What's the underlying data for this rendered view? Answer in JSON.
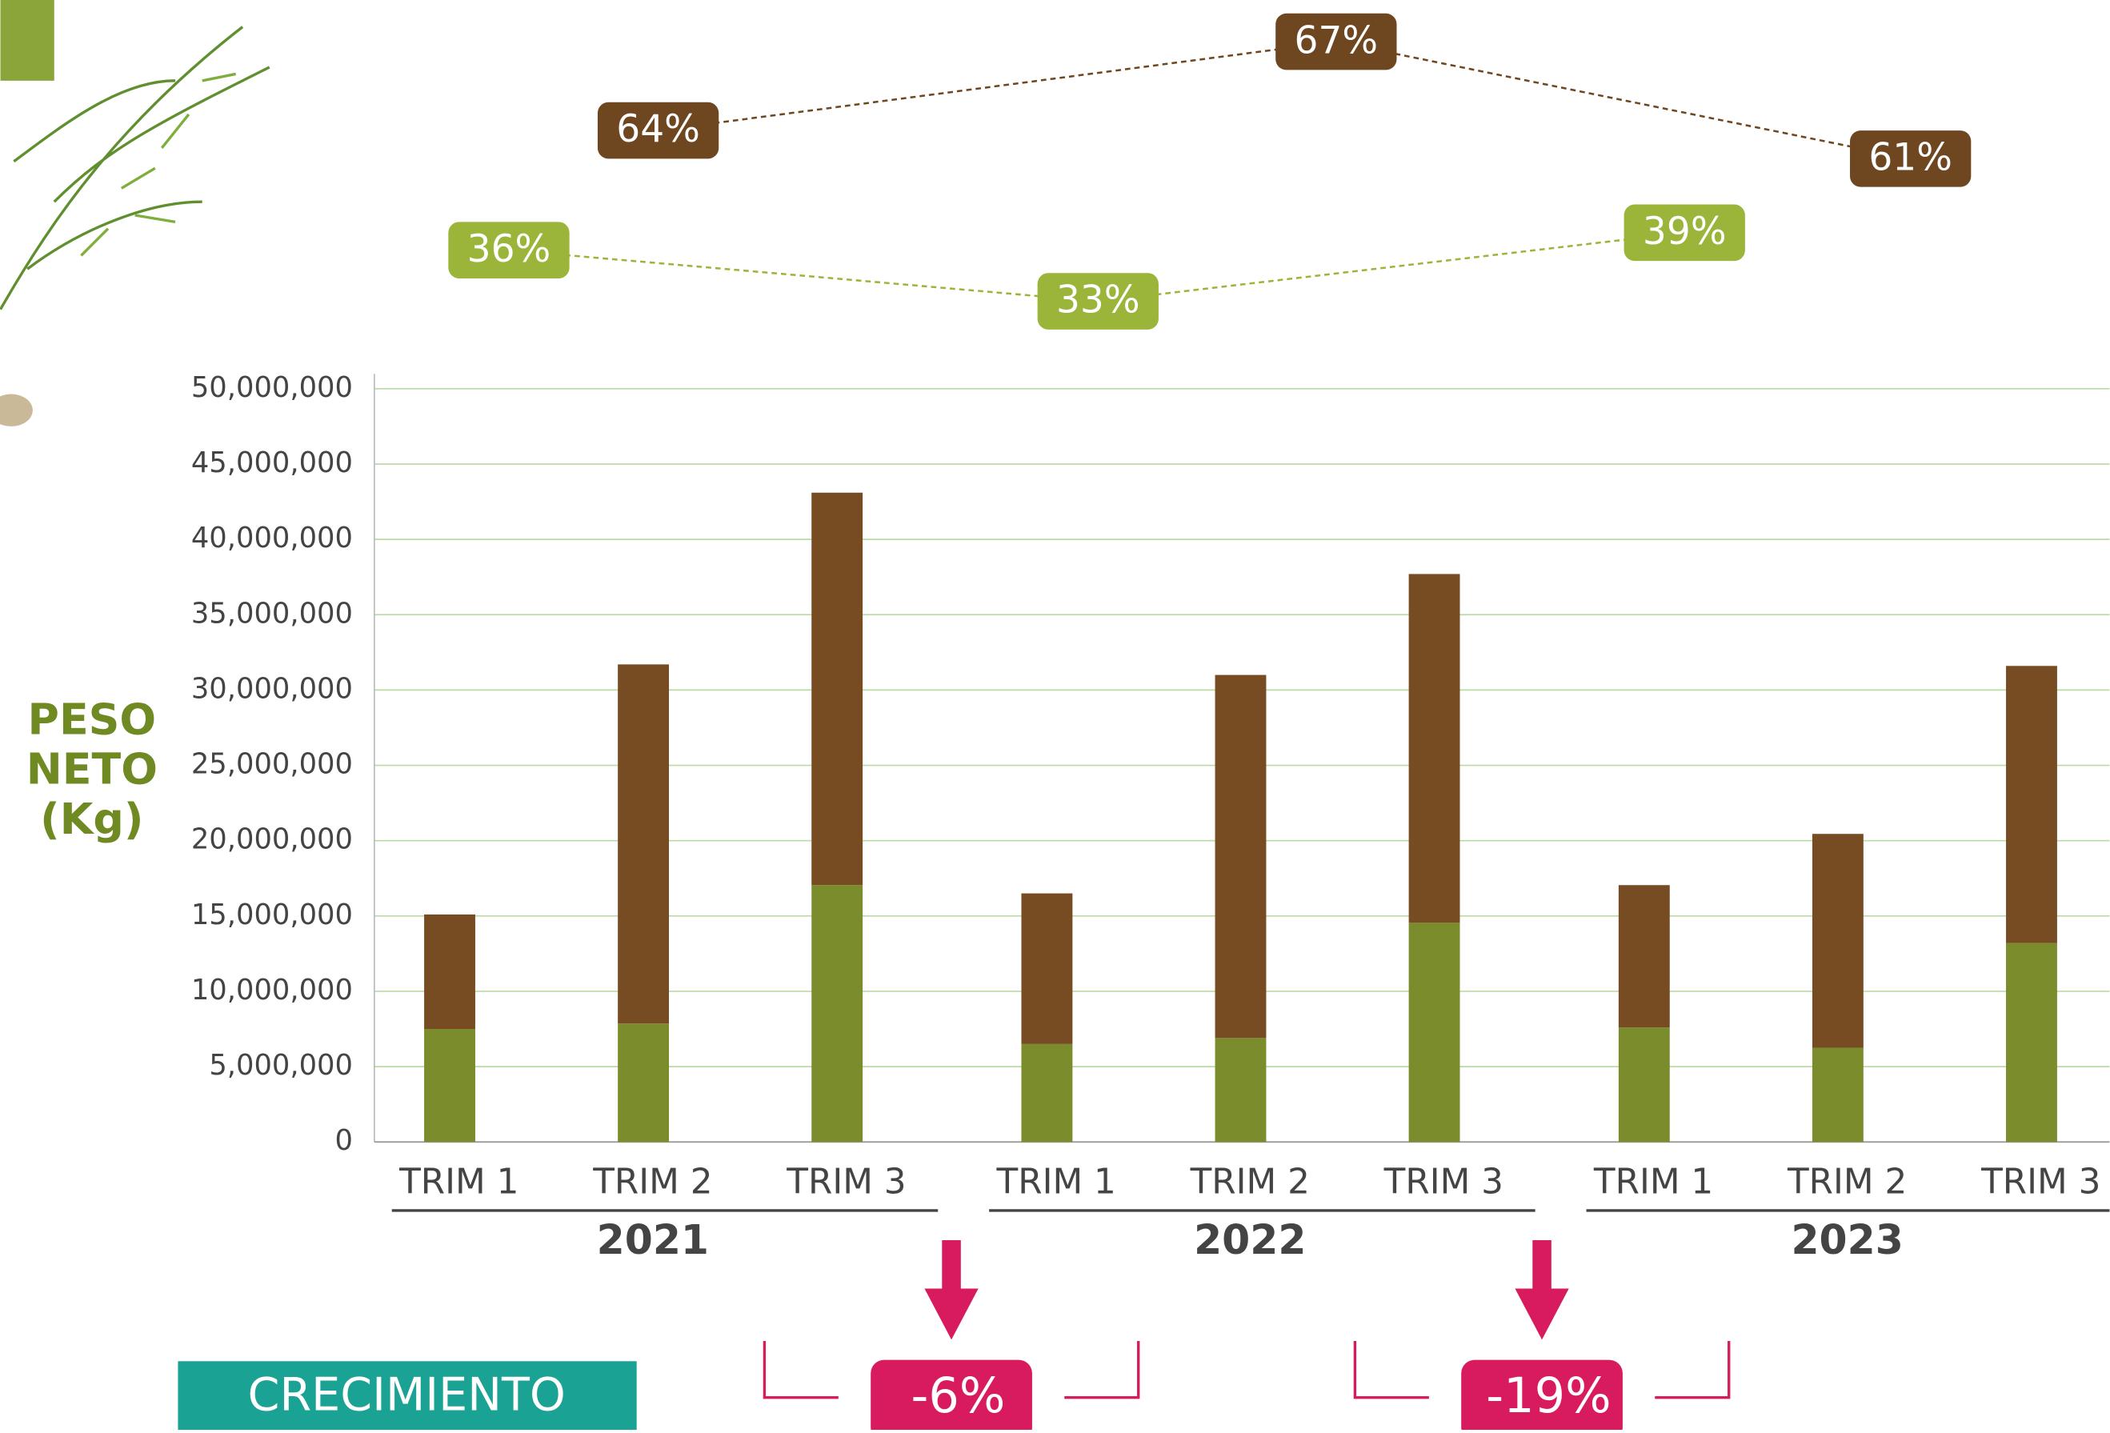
{
  "chart_data": {
    "type": "stacked_bar",
    "ylabel": [
      "PESO",
      "NETO",
      "(Kg)"
    ],
    "categories": [
      "TRIM 1",
      "TRIM 2",
      "TRIM 3",
      "TRIM 1",
      "TRIM 2",
      "TRIM 3",
      "TRIM 1",
      "TRIM 2",
      "TRIM 3"
    ],
    "years": [
      "2021",
      "2022",
      "2023"
    ],
    "series": [
      {
        "color": "#7a8c2b",
        "values": [
          7500000,
          7860000,
          17050000,
          6500000,
          6900000,
          14550000,
          7600000,
          6250000,
          13200000
        ]
      },
      {
        "color": "#774c23",
        "values": [
          7600000,
          23840000,
          26050000,
          10000000,
          24100000,
          23150000,
          9450000,
          14200000,
          18400000
        ]
      }
    ],
    "ylim": [
      0,
      50000000
    ],
    "yticks": [
      0,
      {
        "value": 5000000,
        "label": "5,000,000"
      },
      {
        "value": 10000000,
        "label": "10,000,000"
      },
      {
        "value": 15000000,
        "label": "15,000,000"
      },
      {
        "value": 20000000,
        "label": "20,000,000"
      },
      {
        "value": 25000000,
        "label": "25,000,000"
      },
      {
        "value": 30000000,
        "label": "30,000,000"
      },
      {
        "value": 35000000,
        "label": "35,000,000"
      },
      {
        "value": 40000000,
        "label": "40,000,000"
      },
      {
        "value": 45000000,
        "label": "45,000,000"
      },
      {
        "value": 50000000,
        "label": "50,000,000"
      }
    ],
    "grid": true,
    "shares": [
      {
        "color": "#6e4620",
        "values": [
          64,
          67,
          61
        ],
        "value_labels": [
          "64%",
          "67%",
          "61%"
        ]
      },
      {
        "color": "#9bb53a",
        "values": [
          36,
          33,
          39
        ],
        "value_labels": [
          "36%",
          "33%",
          "39%"
        ]
      }
    ],
    "growth": {
      "label": "CRECIMIENTO",
      "color": "#d81b5f",
      "values": [
        -6,
        -19
      ],
      "value_labels": [
        "-6%",
        "-19%"
      ]
    }
  }
}
